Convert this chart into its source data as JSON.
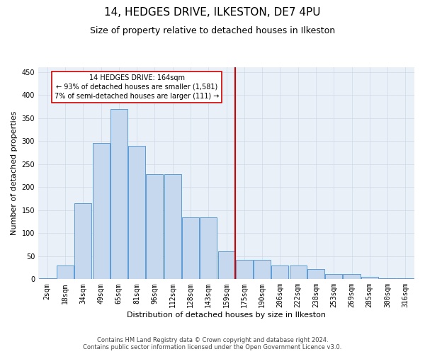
{
  "title": "14, HEDGES DRIVE, ILKESTON, DE7 4PU",
  "subtitle": "Size of property relative to detached houses in Ilkeston",
  "xlabel": "Distribution of detached houses by size in Ilkeston",
  "ylabel": "Number of detached properties",
  "footer1": "Contains HM Land Registry data © Crown copyright and database right 2024.",
  "footer2": "Contains public sector information licensed under the Open Government Licence v3.0.",
  "categories": [
    "2sqm",
    "18sqm",
    "34sqm",
    "49sqm",
    "65sqm",
    "81sqm",
    "96sqm",
    "112sqm",
    "128sqm",
    "143sqm",
    "159sqm",
    "175sqm",
    "190sqm",
    "206sqm",
    "222sqm",
    "238sqm",
    "253sqm",
    "269sqm",
    "285sqm",
    "300sqm",
    "316sqm"
  ],
  "bar_values": [
    2,
    30,
    165,
    295,
    370,
    290,
    228,
    228,
    134,
    134,
    60,
    42,
    42,
    30,
    30,
    22,
    12,
    12,
    5,
    2,
    2
  ],
  "bar_color": "#c5d8ee",
  "bar_edge_color": "#5b9bd5",
  "annotation_label": "14 HEDGES DRIVE: 164sqm",
  "annotation_text1": "← 93% of detached houses are smaller (1,581)",
  "annotation_text2": "7% of semi-detached houses are larger (111) →",
  "vline_color": "#cc0000",
  "annotation_box_color": "#ffffff",
  "annotation_box_edge": "#cc0000",
  "ylim": [
    0,
    460
  ],
  "yticks": [
    0,
    50,
    100,
    150,
    200,
    250,
    300,
    350,
    400,
    450
  ],
  "grid_color": "#d0d8e8",
  "bg_color": "#eaf0f8",
  "title_fontsize": 11,
  "subtitle_fontsize": 9,
  "axis_label_fontsize": 8,
  "tick_fontsize": 7
}
